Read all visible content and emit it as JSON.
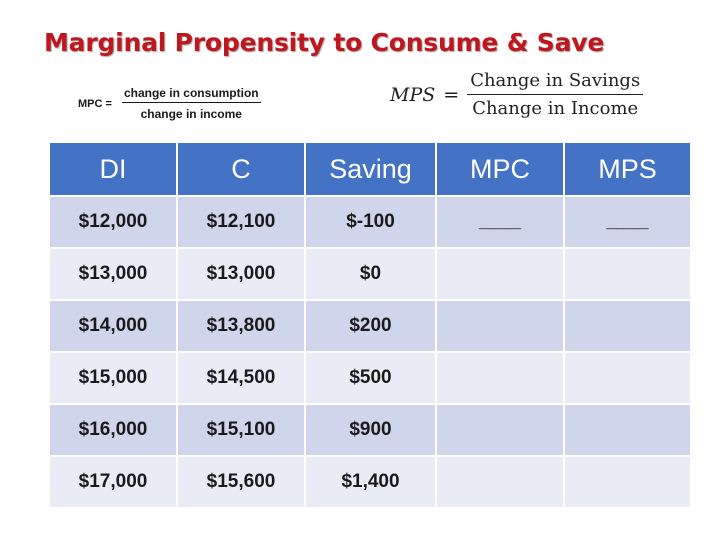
{
  "title": "Marginal Propensity to Consume & Save",
  "mpc_formula": {
    "lhs": "MPC =",
    "numerator": "change in consumption",
    "denominator": "change in income"
  },
  "mps_formula": {
    "lhs": "MPS",
    "equals": "=",
    "numerator": "Change in Savings",
    "denominator": "Change in Income"
  },
  "table": {
    "headers": [
      "DI",
      "C",
      "Saving",
      "MPC",
      "MPS"
    ],
    "rows": [
      [
        "$12,000",
        "$12,100",
        "$-100",
        "____",
        "____"
      ],
      [
        "$13,000",
        "$13,000",
        "$0",
        "",
        ""
      ],
      [
        "$14,000",
        "$13,800",
        "$200",
        "",
        ""
      ],
      [
        "$15,000",
        "$14,500",
        "$500",
        "",
        ""
      ],
      [
        "$16,000",
        "$15,100",
        "$900",
        "",
        ""
      ],
      [
        "$17,000",
        "$15,600",
        "$1,400",
        "",
        ""
      ]
    ]
  },
  "colors": {
    "title": "#c0161e",
    "header_bg": "#4472c4",
    "row_odd": "#cfd5ea",
    "row_even": "#e9ebf5"
  }
}
